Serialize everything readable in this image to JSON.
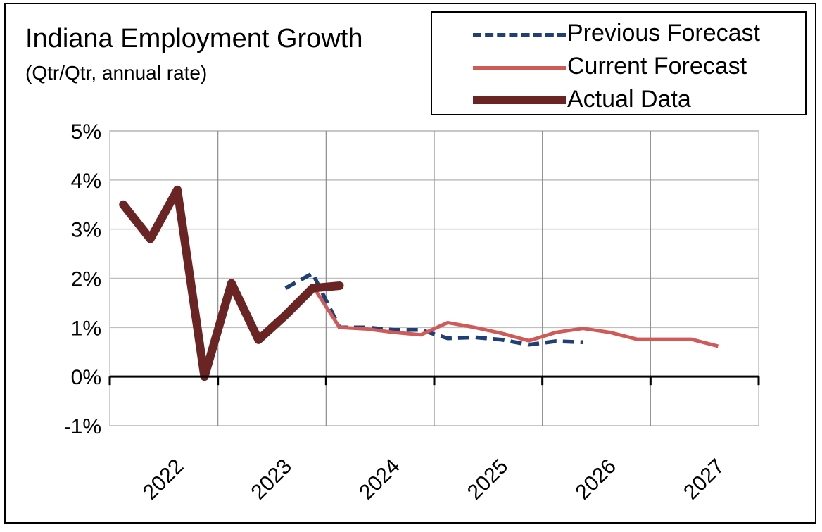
{
  "chart_data": {
    "type": "line",
    "title": "Indiana Employment Growth",
    "subtitle": "(Qtr/Qtr, annual rate)",
    "xlabel": "",
    "ylabel": "",
    "ylim": [
      -1,
      5
    ],
    "y_ticks": [
      {
        "value": 5,
        "label": "5%"
      },
      {
        "value": 4,
        "label": "4%"
      },
      {
        "value": 3,
        "label": "3%"
      },
      {
        "value": 2,
        "label": "2%"
      },
      {
        "value": 1,
        "label": "1%"
      },
      {
        "value": 0,
        "label": "0%"
      },
      {
        "value": -1,
        "label": "-1%"
      }
    ],
    "x_ticks": [
      "2022",
      "2023",
      "2024",
      "2025",
      "2026",
      "2027"
    ],
    "x_range": [
      "2022Q1",
      "2027Q4"
    ],
    "grid": true,
    "legend_position": "top-right",
    "series": [
      {
        "name": "Previous Forecast",
        "color": "#1F3F76",
        "style": "dashed",
        "points": [
          [
            "2023Q3",
            1.8
          ],
          [
            "2023Q4",
            2.1
          ],
          [
            "2024Q1",
            1.0
          ],
          [
            "2024Q2",
            1.0
          ],
          [
            "2024Q3",
            0.95
          ],
          [
            "2024Q4",
            0.95
          ],
          [
            "2025Q1",
            0.78
          ],
          [
            "2025Q2",
            0.8
          ],
          [
            "2025Q3",
            0.75
          ],
          [
            "2025Q4",
            0.65
          ],
          [
            "2026Q1",
            0.72
          ],
          [
            "2026Q2",
            0.7
          ]
        ]
      },
      {
        "name": "Current Forecast",
        "color": "#D05A57",
        "style": "solid",
        "points": [
          [
            "2023Q4",
            1.85
          ],
          [
            "2024Q1",
            1.0
          ],
          [
            "2024Q2",
            0.97
          ],
          [
            "2024Q3",
            0.9
          ],
          [
            "2024Q4",
            0.85
          ],
          [
            "2025Q1",
            1.1
          ],
          [
            "2025Q2",
            1.0
          ],
          [
            "2025Q3",
            0.88
          ],
          [
            "2025Q4",
            0.73
          ],
          [
            "2026Q1",
            0.9
          ],
          [
            "2026Q2",
            0.98
          ],
          [
            "2026Q3",
            0.9
          ],
          [
            "2026Q4",
            0.76
          ],
          [
            "2027Q1",
            0.76
          ],
          [
            "2027Q2",
            0.76
          ],
          [
            "2027Q3",
            0.62
          ]
        ]
      },
      {
        "name": "Actual Data",
        "color": "#6B2424",
        "style": "thick",
        "points": [
          [
            "2022Q1",
            3.5
          ],
          [
            "2022Q2",
            2.8
          ],
          [
            "2022Q3",
            3.8
          ],
          [
            "2022Q4",
            0.0
          ],
          [
            "2023Q1",
            1.9
          ],
          [
            "2023Q2",
            0.75
          ],
          [
            "2023Q3",
            1.25
          ],
          [
            "2023Q4",
            1.8
          ],
          [
            "2024Q1",
            1.85
          ]
        ]
      }
    ]
  }
}
